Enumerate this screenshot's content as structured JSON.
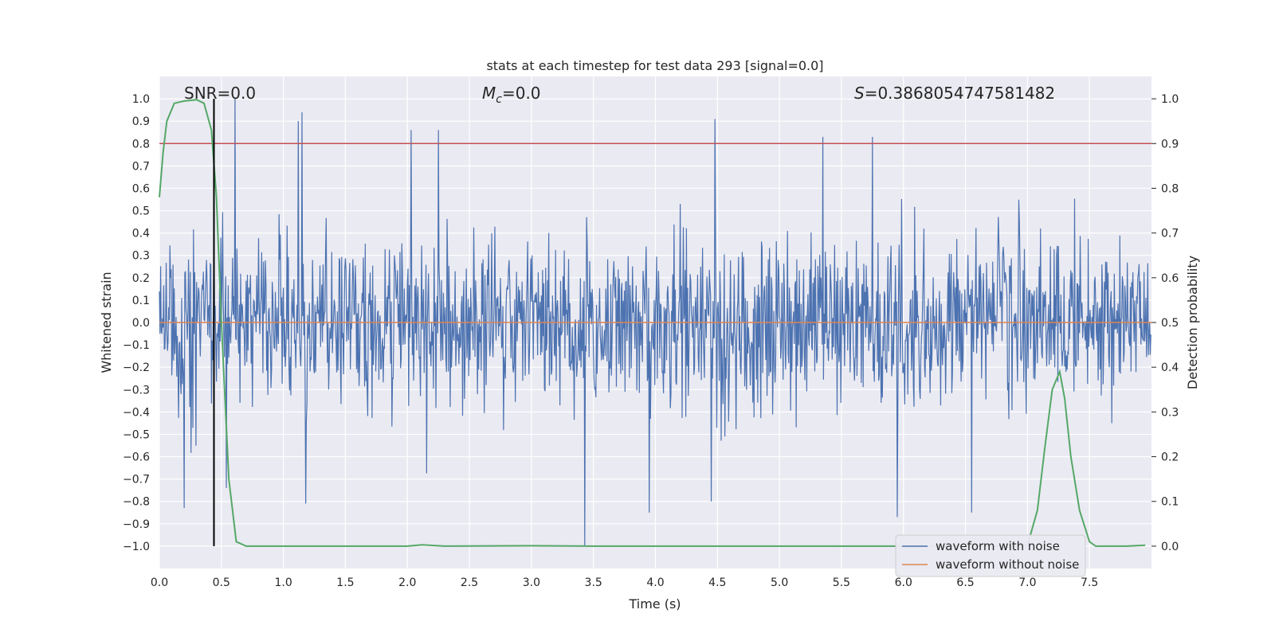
{
  "chart_data": {
    "type": "line",
    "title": "stats at each timestep for test data 293 [signal=0.0]",
    "xlabel": "Time (s)",
    "ylabel": "Whitened strain",
    "y2label": "Detection probability",
    "xlim": [
      0.0,
      8.0
    ],
    "ylim": [
      -1.1,
      1.1
    ],
    "y2lim": [
      -0.05,
      1.05
    ],
    "x_ticks": [
      0.0,
      0.5,
      1.0,
      1.5,
      2.0,
      2.5,
      3.0,
      3.5,
      4.0,
      4.5,
      5.0,
      5.5,
      6.0,
      6.5,
      7.0,
      7.5
    ],
    "x_tick_labels": [
      "0.0",
      "0.5",
      "1.0",
      "1.5",
      "2.0",
      "2.5",
      "3.0",
      "3.5",
      "4.0",
      "4.5",
      "5.0",
      "5.5",
      "6.0",
      "6.5",
      "7.0",
      "7.5"
    ],
    "y_ticks": [
      1.0,
      0.9,
      0.8,
      0.7,
      0.6,
      0.5,
      0.4,
      0.3,
      0.2,
      0.1,
      0.0,
      -0.1,
      -0.2,
      -0.3,
      -0.4,
      -0.5,
      -0.6,
      -0.7,
      -0.8,
      -0.9,
      -1.0
    ],
    "y_tick_labels": [
      "1.0",
      "0.9",
      "0.8",
      "0.7",
      "0.6",
      "0.5",
      "0.4",
      "0.3",
      "0.2",
      "0.1",
      "0.0",
      "−0.1",
      "−0.2",
      "−0.3",
      "−0.4",
      "−0.5",
      "−0.6",
      "−0.7",
      "−0.8",
      "−0.9",
      "−1.0"
    ],
    "y2_ticks": [
      1.0,
      0.9,
      0.8,
      0.7,
      0.6,
      0.5,
      0.4,
      0.3,
      0.2,
      0.1,
      0.0
    ],
    "y2_tick_labels": [
      "1.0",
      "0.9",
      "0.8",
      "0.7",
      "0.6",
      "0.5",
      "0.4",
      "0.3",
      "0.2",
      "0.1",
      "0.0"
    ],
    "grid": true,
    "annotations": {
      "snr": "SNR=0.0",
      "mc_symbol": "M",
      "mc_sub": "c",
      "mc_value": "=0.0",
      "s_symbol": "S",
      "s_value": "=0.3868054747581482"
    },
    "threshold": {
      "axis": "y2",
      "value": 0.9,
      "color": "#c44e52"
    },
    "marker_time": 0.44,
    "noise_waveform": {
      "name": "waveform with noise",
      "color": "#4c72b0",
      "n_samples": 1600,
      "typical_envelope": 0.2,
      "extremes": [
        {
          "t": 0.61,
          "v": 1.0
        },
        {
          "t": 1.12,
          "v": 0.9
        },
        {
          "t": 1.15,
          "v": 0.94
        },
        {
          "t": 2.03,
          "v": 0.86
        },
        {
          "t": 2.25,
          "v": 0.86
        },
        {
          "t": 4.48,
          "v": 0.91
        },
        {
          "t": 5.35,
          "v": 0.83
        },
        {
          "t": 5.75,
          "v": 0.83
        },
        {
          "t": 0.2,
          "v": -0.83
        },
        {
          "t": 0.54,
          "v": -0.74
        },
        {
          "t": 1.18,
          "v": -0.81
        },
        {
          "t": 3.43,
          "v": -1.0
        },
        {
          "t": 3.95,
          "v": -0.85
        },
        {
          "t": 4.45,
          "v": -0.8
        },
        {
          "t": 5.95,
          "v": -0.87
        },
        {
          "t": 6.55,
          "v": -0.85
        }
      ]
    },
    "clean_waveform": {
      "name": "waveform without noise",
      "color": "#dd8452",
      "value": 0.0
    },
    "detection_probability": {
      "name": "detection probability",
      "color": "#55a868",
      "t": [
        0.0,
        0.03,
        0.06,
        0.12,
        0.2,
        0.3,
        0.36,
        0.42,
        0.46,
        0.5,
        0.56,
        0.62,
        0.7,
        1.0,
        2.0,
        2.12,
        2.3,
        3.0,
        3.5,
        4.0,
        5.0,
        6.0,
        6.5,
        6.9,
        7.0,
        7.08,
        7.14,
        7.2,
        7.26,
        7.3,
        7.35,
        7.42,
        7.5,
        7.55,
        7.6,
        7.8,
        7.95
      ],
      "values": [
        0.78,
        0.88,
        0.95,
        0.99,
        0.995,
        0.998,
        0.99,
        0.93,
        0.78,
        0.5,
        0.15,
        0.01,
        0.0,
        0.0,
        0.0,
        0.003,
        0.0,
        0.001,
        0.0,
        0.0,
        0.0,
        0.0,
        0.0,
        0.0,
        0.002,
        0.08,
        0.22,
        0.35,
        0.39,
        0.33,
        0.2,
        0.08,
        0.01,
        0.0,
        0.0,
        0.0,
        0.002
      ]
    },
    "legend": {
      "placement": "bottom-right",
      "entries": [
        {
          "label": "waveform with noise",
          "color": "#4c72b0"
        },
        {
          "label": "waveform without noise",
          "color": "#dd8452"
        }
      ]
    },
    "colors": {
      "plot_bg": "#eaeaf2",
      "grid": "#ffffff",
      "marker_line": "#000000"
    }
  }
}
